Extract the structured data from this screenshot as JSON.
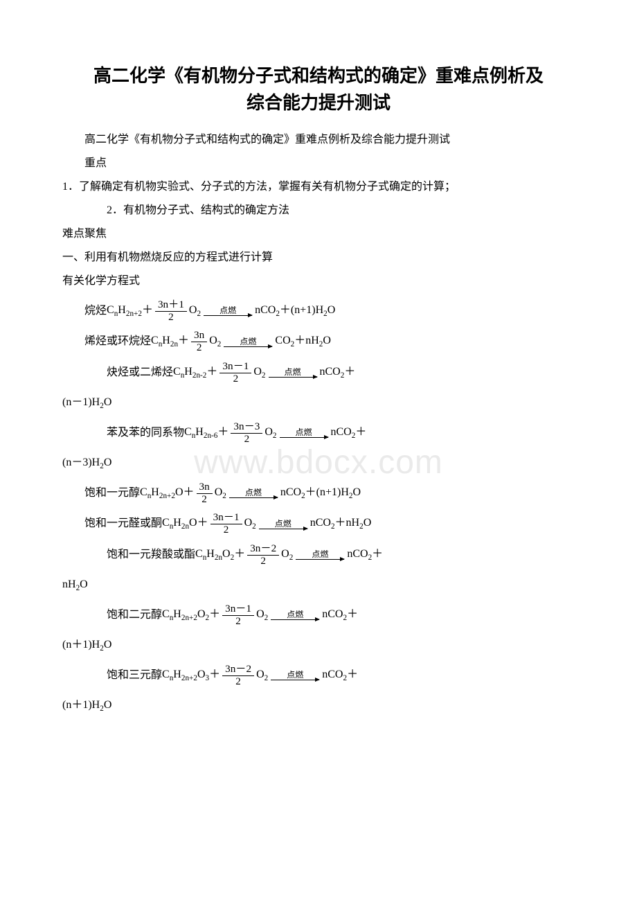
{
  "title_line1": "高二化学《有机物分子式和结构式的确定》重难点例析及",
  "title_line2": "综合能力提升测试",
  "subtitle": "高二化学《有机物分子式和结构式的确定》重难点例析及综合能力提升测试",
  "label_key": "重点",
  "key1": "1．了解确定有机物实验式、分子式的方法，掌握有关有机物分子式确定的计算；",
  "key2": "2．有机物分子式、结构式的确定方法",
  "label_focus": "难点聚焦",
  "sec1": "一、利用有机物燃烧反应的方程式进行计算",
  "sec1a": "有关化学方程式",
  "watermark": "www.bdocx.com",
  "eq": {
    "alkane_pre": "烷烃",
    "alkene_pre": "烯烃或环烷烃",
    "alkyne_pre": "炔烃或二烯烃",
    "benzene_pre": "苯及苯的同系物",
    "alcohol_pre": "饱和一元醇",
    "aldket_pre": "饱和一元醛或酮",
    "acid_pre": "饱和一元羧酸或酯",
    "diol_pre": "饱和二元醇",
    "triol_pre": "饱和三元醇",
    "combust": "点燃",
    "f_3n1": "3n＋1",
    "f_3n": "3n",
    "f_3nm1": "3n－1",
    "f_3nm3": "3n－3",
    "f_3nm2": "3n－2",
    "den2": "2",
    "cont_nm1": "(n－1)H",
    "cont_nm3": "(n－3)H",
    "cont_nh2o": "nH",
    "cont_np1": "(n＋1)H"
  }
}
